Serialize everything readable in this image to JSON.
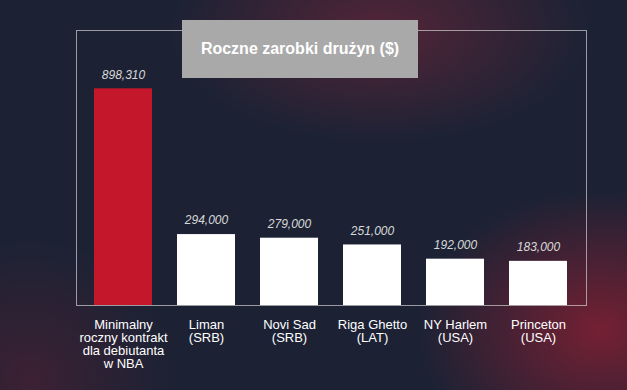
{
  "chart_data": {
    "type": "bar",
    "title": "Roczne zarobki drużyn ($)",
    "categories": [
      "Minimalny\nroczny kontrakt\ndla debiutanta\nw NBA",
      "Liman\n(SRB)",
      "Novi Sad\n(SRB)",
      "Riga Ghetto\n(LAT)",
      "NY Harlem\n(USA)",
      "Princeton\n(USA)"
    ],
    "values": [
      898310,
      294000,
      279000,
      251000,
      192000,
      183000
    ],
    "value_labels": [
      "898,310",
      "294,000",
      "279,000",
      "251,000",
      "192,000",
      "183,000"
    ],
    "colors": [
      "#c4172c",
      "#ffffff",
      "#ffffff",
      "#ffffff",
      "#ffffff",
      "#ffffff"
    ],
    "ylim": [
      0,
      1140000
    ],
    "yticks": [],
    "grid": false,
    "data_labels": true,
    "tick_labels": "x"
  }
}
